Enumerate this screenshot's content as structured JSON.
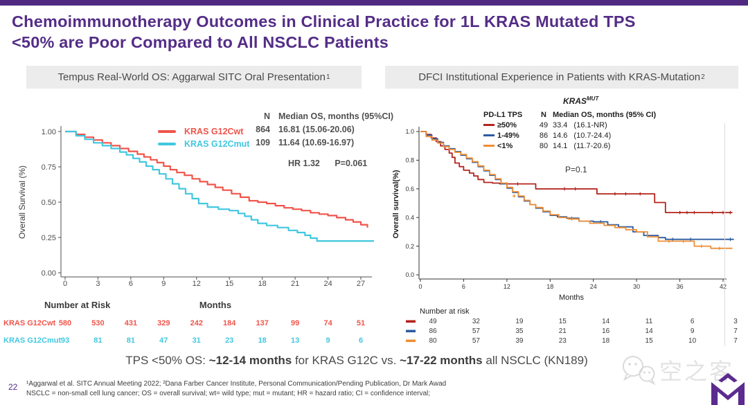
{
  "title": {
    "line1": "Chemoimmunotherapy Outcomes in Clinical Practice for 1L KRAS Mutated TPS",
    "line2": "<50% are Poor Compared to All NSCLC Patients"
  },
  "panels": {
    "left": {
      "header": "Tempus Real-World OS: Aggarwal SITC Oral Presentation",
      "header_sup": "1"
    },
    "right": {
      "header": "DFCI Institutional Experience in Patients with KRAS-Mutation",
      "header_sup": "2"
    }
  },
  "summary": {
    "pre": "TPS <50% OS: ",
    "bold1": "~12-14 months",
    "mid": " for KRAS G12C vs. ",
    "bold2": "~17-22 months",
    "post": " all NSCLC (KN189)"
  },
  "footnotes": {
    "line1": "¹Aggarwal et al. SITC Annual Meeting 2022;  ²Dana Farber Cancer Institute, Personal Communication/Pending Publication, Dr Mark Awad",
    "line2": "NSCLC = non-small cell lung cancer; OS = overall survival; wt= wild type; mut = mutant; HR = hazard ratio; CI = confidence interval;"
  },
  "page_number": "22",
  "watermark": {
    "text": "空之客"
  },
  "chart_data": [
    {
      "type": "line",
      "subtype": "kaplan-meier",
      "title": "Tempus Real-World OS: Aggarwal SITC Oral Presentation",
      "xlabel": "Months",
      "ylabel": "Overall Survival (%)",
      "xlim": [
        0,
        27
      ],
      "ylim": [
        0,
        1
      ],
      "xticks": [
        0,
        3,
        6,
        9,
        12,
        15,
        18,
        21,
        24,
        27
      ],
      "yticks": [
        0,
        0.25,
        0.5,
        0.75,
        1
      ],
      "ytick_labels": [
        "0.00",
        "0.25",
        "0.50",
        "0.75",
        "1.00"
      ],
      "grid": false,
      "legend_position": "top-inside",
      "stats_cols": {
        "n": "N",
        "med": "Median OS, months (95%CI)"
      },
      "hr": "HR 1.32",
      "p": "P=0.061",
      "series": [
        {
          "name": "KRAS G12Cwt",
          "color": "#f0544a",
          "n": "864",
          "median": "16.81 (15.06-20.06)",
          "x": [
            0,
            1,
            1.8,
            2.6,
            3.4,
            4.2,
            5,
            5.8,
            6.6,
            7.2,
            7.8,
            8.4,
            9,
            9.6,
            10.2,
            10.9,
            11.6,
            12.3,
            13,
            13.7,
            14.4,
            15.2,
            16,
            16.8,
            17.6,
            18.4,
            19.2,
            20,
            20.8,
            21.6,
            22.4,
            23.2,
            24,
            24.8,
            25.6,
            26.3,
            27,
            27.6
          ],
          "y": [
            1,
            0.98,
            0.96,
            0.94,
            0.92,
            0.9,
            0.88,
            0.86,
            0.84,
            0.82,
            0.8,
            0.78,
            0.755,
            0.73,
            0.71,
            0.69,
            0.665,
            0.645,
            0.625,
            0.605,
            0.585,
            0.56,
            0.535,
            0.51,
            0.5,
            0.49,
            0.475,
            0.46,
            0.45,
            0.44,
            0.425,
            0.415,
            0.405,
            0.39,
            0.375,
            0.36,
            0.34,
            0.32
          ]
        },
        {
          "name": "KRAS G12Cmut",
          "color": "#41c7e0",
          "n": "109",
          "median": "11.64 (10.69-16.97)",
          "x": [
            0,
            1,
            1.8,
            2.6,
            3.4,
            4.2,
            5,
            5.6,
            6.2,
            6.8,
            7.4,
            8,
            8.6,
            9.2,
            9.8,
            10.4,
            11,
            11.6,
            12.2,
            13,
            14,
            15,
            15.8,
            16.4,
            17,
            17.6,
            18.4,
            19.4,
            20.4,
            21.2,
            21.9,
            22.4,
            23,
            28.2
          ],
          "y": [
            1,
            0.97,
            0.945,
            0.92,
            0.9,
            0.88,
            0.855,
            0.835,
            0.81,
            0.785,
            0.755,
            0.73,
            0.7,
            0.665,
            0.63,
            0.595,
            0.56,
            0.525,
            0.49,
            0.465,
            0.45,
            0.44,
            0.42,
            0.4,
            0.375,
            0.35,
            0.335,
            0.32,
            0.3,
            0.285,
            0.265,
            0.245,
            0.225,
            0.225
          ]
        }
      ],
      "number_at_risk": {
        "title": "Number at Risk",
        "at": [
          0,
          3,
          6,
          9,
          12,
          15,
          18,
          21,
          24,
          27
        ],
        "rows": [
          {
            "label": "KRAS G12Cwt",
            "color": "#f0544a",
            "values": [
              580,
              530,
              431,
              329,
              242,
              184,
              137,
              99,
              74,
              51
            ]
          },
          {
            "label": "KRAS G12Cmut",
            "color": "#41c7e0",
            "values": [
              93,
              81,
              81,
              47,
              31,
              23,
              18,
              13,
              9,
              6
            ]
          }
        ]
      }
    },
    {
      "type": "line",
      "subtype": "kaplan-meier",
      "title": "DFCI Institutional Experience in Patients with KRAS-Mutation",
      "title_italic": "KRAS",
      "title_sup": "MUT",
      "xlabel": "Months",
      "ylabel": "Overall survival(%)",
      "xlim": [
        0,
        42
      ],
      "ylim": [
        0,
        1
      ],
      "xticks": [
        0,
        6,
        12,
        18,
        24,
        30,
        36,
        42
      ],
      "yticks": [
        0,
        0.2,
        0.4,
        0.6,
        0.8,
        1
      ],
      "ytick_labels": [
        "0.0",
        "0.2",
        "0.4",
        "0.6",
        "0.8",
        "1.0"
      ],
      "grid": false,
      "legend_position": "top-right-inside",
      "legend_cols": {
        "group": "PD-L1 TPS",
        "n": "N",
        "med": "Median OS, months (95% CI)"
      },
      "p": "P=0.1",
      "series": [
        {
          "name": "≥50%",
          "color": "#b3231d",
          "n": "49",
          "median": "33.4",
          "ci": "(16.1-NR)",
          "x": [
            0,
            0.8,
            1.5,
            2.2,
            2.8,
            3.4,
            4,
            4.4,
            4.8,
            5.4,
            6,
            6.8,
            7.4,
            8,
            8.8,
            10,
            11,
            16,
            24.5,
            32.5,
            34,
            43.3
          ],
          "y": [
            1,
            0.98,
            0.955,
            0.93,
            0.9,
            0.875,
            0.85,
            0.82,
            0.78,
            0.755,
            0.73,
            0.71,
            0.69,
            0.665,
            0.645,
            0.64,
            0.635,
            0.6,
            0.565,
            0.505,
            0.435,
            0.435
          ],
          "censors": [
            [
              12,
              0.635
            ],
            [
              13.5,
              0.635
            ],
            [
              20,
              0.6
            ],
            [
              21.5,
              0.6
            ],
            [
              27,
              0.565
            ],
            [
              28.5,
              0.565
            ],
            [
              30.5,
              0.565
            ],
            [
              36,
              0.435
            ],
            [
              37,
              0.435
            ],
            [
              38,
              0.435
            ],
            [
              40.5,
              0.435
            ],
            [
              42,
              0.435
            ],
            [
              43,
              0.435
            ]
          ]
        },
        {
          "name": "1-49%",
          "color": "#2c5aa0",
          "n": "86",
          "median": "14.6",
          "ci": "(10.7-24.4)",
          "x": [
            0,
            0.8,
            1.6,
            2.4,
            3.2,
            4,
            4.8,
            5.6,
            6.4,
            7.2,
            8,
            8.8,
            9.6,
            10.4,
            11.2,
            12,
            12.8,
            13.6,
            14.4,
            15.2,
            16,
            17,
            18,
            19,
            20.3,
            22,
            24,
            26,
            27.5,
            29.5,
            31,
            33,
            34,
            43.5
          ],
          "y": [
            1,
            0.975,
            0.95,
            0.925,
            0.9,
            0.88,
            0.86,
            0.835,
            0.81,
            0.785,
            0.755,
            0.725,
            0.695,
            0.665,
            0.635,
            0.605,
            0.575,
            0.545,
            0.515,
            0.49,
            0.465,
            0.44,
            0.415,
            0.405,
            0.395,
            0.375,
            0.37,
            0.35,
            0.335,
            0.3,
            0.275,
            0.26,
            0.248,
            0.248
          ],
          "censors": [
            [
              21,
              0.395
            ],
            [
              25,
              0.37
            ],
            [
              35,
              0.248
            ],
            [
              37.5,
              0.248
            ],
            [
              43,
              0.248
            ]
          ]
        },
        {
          "name": "<1%",
          "color": "#ee8d34",
          "n": "80",
          "median": "14.1",
          "ci": "(11.7-20.6)",
          "x": [
            0,
            0.8,
            1.6,
            2.4,
            3.2,
            4,
            4.8,
            5.6,
            6.4,
            7.2,
            8,
            8.8,
            9.6,
            10.4,
            11.2,
            12,
            12.8,
            13.6,
            14.4,
            15.2,
            16,
            17,
            18,
            19.2,
            20.5,
            22,
            23.5,
            25.5,
            27,
            28.5,
            30,
            31.5,
            33,
            38,
            40.3,
            43.3
          ],
          "y": [
            1,
            0.965,
            0.94,
            0.92,
            0.895,
            0.875,
            0.855,
            0.84,
            0.815,
            0.79,
            0.76,
            0.73,
            0.7,
            0.67,
            0.64,
            0.61,
            0.58,
            0.55,
            0.52,
            0.49,
            0.47,
            0.445,
            0.42,
            0.4,
            0.39,
            0.375,
            0.36,
            0.345,
            0.33,
            0.315,
            0.3,
            0.265,
            0.235,
            0.2,
            0.185,
            0.185
          ],
          "censors": [
            [
              3.5,
              0.895
            ],
            [
              13,
              0.55
            ],
            [
              21,
              0.39
            ],
            [
              34.5,
              0.235
            ],
            [
              36.5,
              0.235
            ],
            [
              39,
              0.2
            ],
            [
              41.5,
              0.185
            ]
          ]
        }
      ],
      "number_at_risk": {
        "title": "Number at risk",
        "at": [
          0,
          6,
          12,
          18,
          24,
          30,
          36,
          42
        ],
        "rows": [
          {
            "label": "≥50%",
            "color": "#b3231d",
            "values": [
              49,
              32,
              19,
              15,
              14,
              11,
              6,
              3
            ]
          },
          {
            "label": "1-49%",
            "color": "#2c5aa0",
            "values": [
              86,
              57,
              35,
              21,
              16,
              14,
              9,
              7
            ]
          },
          {
            "label": "<1%",
            "color": "#ee8d34",
            "values": [
              80,
              57,
              39,
              23,
              18,
              15,
              10,
              7
            ]
          }
        ]
      }
    }
  ]
}
